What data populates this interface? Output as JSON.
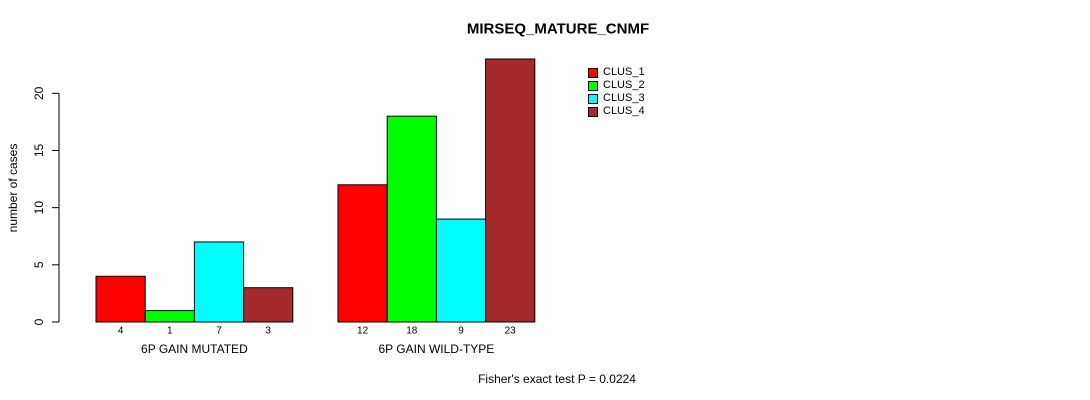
{
  "chart_data": {
    "type": "bar",
    "title": "MIRSEQ_MATURE_CNMF",
    "xlabel": "",
    "ylabel": "number of cases",
    "ylim": [
      0,
      23
    ],
    "yticks": [
      0,
      5,
      10,
      15,
      20
    ],
    "grid": false,
    "legend_position": "top-right",
    "categories": [
      "6P GAIN MUTATED",
      "6P GAIN WILD-TYPE"
    ],
    "series": [
      {
        "name": "CLUS_1",
        "color": "#ff0000",
        "values": [
          4,
          12
        ]
      },
      {
        "name": "CLUS_2",
        "color": "#00ff00",
        "values": [
          1,
          18
        ]
      },
      {
        "name": "CLUS_3",
        "color": "#00ffff",
        "values": [
          7,
          9
        ]
      },
      {
        "name": "CLUS_4",
        "color": "#a52a2a",
        "values": [
          3,
          23
        ]
      }
    ],
    "bar_value_labels": [
      [
        "4",
        "1",
        "7",
        "3"
      ],
      [
        "12",
        "18",
        "9",
        "23"
      ]
    ],
    "bar_outline_color": "#000000",
    "axis_color": "#000000",
    "annotation": "Fisher's exact test P = 0.0224"
  }
}
